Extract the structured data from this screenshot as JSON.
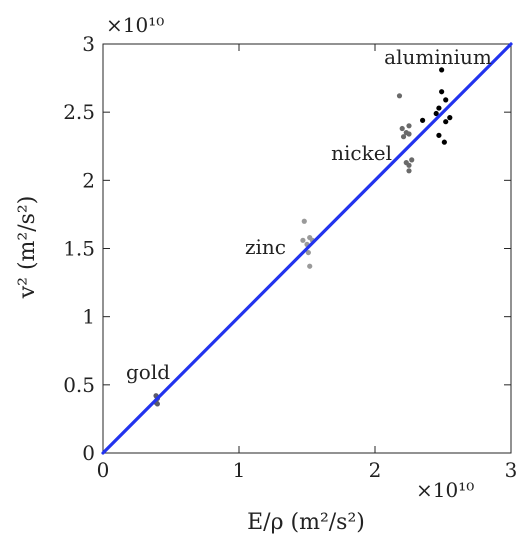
{
  "chart_data": {
    "type": "scatter",
    "title": "",
    "xlabel": "E/ρ  (m²/s²)",
    "ylabel": "v²  (m²/s²)",
    "x_multiplier": "×10¹⁰",
    "y_multiplier": "×10¹⁰",
    "scale": 10000000000,
    "xlim": [
      0,
      3
    ],
    "ylim": [
      0,
      3
    ],
    "xticks": [
      "0",
      "1",
      "2",
      "3"
    ],
    "yticks": [
      "0",
      "0.5",
      "1",
      "1.5",
      "2",
      "2.5",
      "3"
    ],
    "grid": false,
    "legend": "none",
    "fit_line": {
      "x": [
        0,
        3
      ],
      "y": [
        0,
        3
      ],
      "color": "#2233ee"
    },
    "series": [
      {
        "label": "gold",
        "color": "#5a5a6a",
        "points": [
          [
            0.39,
            0.42
          ],
          [
            0.4,
            0.4
          ],
          [
            0.39,
            0.38
          ],
          [
            0.4,
            0.36
          ],
          [
            0.39,
            0.37
          ]
        ]
      },
      {
        "label": "zinc",
        "color": "#9a9a9a",
        "points": [
          [
            1.48,
            1.7
          ],
          [
            1.47,
            1.56
          ],
          [
            1.5,
            1.53
          ],
          [
            1.52,
            1.58
          ],
          [
            1.54,
            1.56
          ],
          [
            1.51,
            1.47
          ],
          [
            1.52,
            1.37
          ]
        ]
      },
      {
        "label": "nickel",
        "color": "#6a6a6a",
        "points": [
          [
            2.18,
            2.62
          ],
          [
            2.2,
            2.38
          ],
          [
            2.23,
            2.35
          ],
          [
            2.21,
            2.32
          ],
          [
            2.25,
            2.4
          ],
          [
            2.25,
            2.34
          ],
          [
            2.27,
            2.15
          ],
          [
            2.23,
            2.13
          ],
          [
            2.25,
            2.11
          ],
          [
            2.25,
            2.07
          ]
        ]
      },
      {
        "label": "aluminium",
        "color": "#000000",
        "points": [
          [
            2.49,
            2.81
          ],
          [
            2.49,
            2.65
          ],
          [
            2.52,
            2.59
          ],
          [
            2.47,
            2.53
          ],
          [
            2.45,
            2.49
          ],
          [
            2.55,
            2.46
          ],
          [
            2.35,
            2.44
          ],
          [
            2.52,
            2.43
          ],
          [
            2.47,
            2.33
          ],
          [
            2.51,
            2.28
          ]
        ]
      }
    ]
  }
}
